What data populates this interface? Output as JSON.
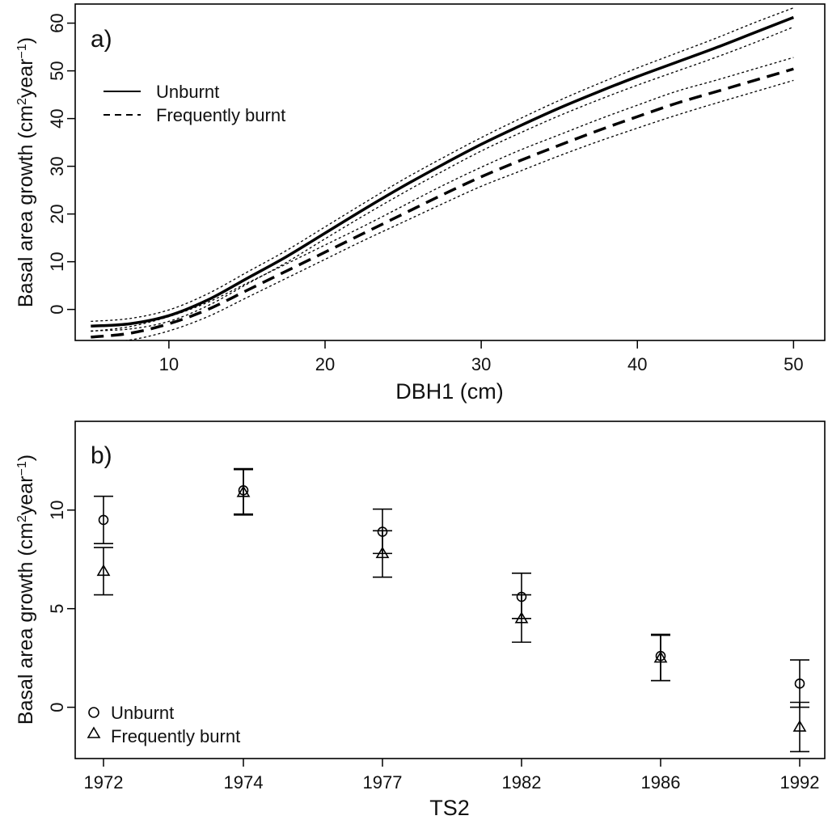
{
  "chart_data": [
    {
      "type": "line",
      "panel_label": "a)",
      "xlabel": "DBH1 (cm)",
      "ylabel": {
        "prefix": "Basal area growth (cm",
        "sup1": "2",
        "mid": "year",
        "sup2": "−1",
        "suffix": ")"
      },
      "xlim": [
        4,
        52
      ],
      "ylim": [
        -6.5,
        64
      ],
      "xticks": [
        10,
        20,
        30,
        40,
        50
      ],
      "yticks": [
        0,
        10,
        20,
        30,
        40,
        50,
        60
      ],
      "legend": {
        "position": "top-left",
        "entries": [
          {
            "label": "Unburnt",
            "style": "solid"
          },
          {
            "label": "Frequently burnt",
            "style": "dashed"
          }
        ]
      },
      "series": [
        {
          "name": "Unburnt",
          "style": "solid",
          "x": [
            5,
            7.5,
            10,
            12.5,
            15,
            17.5,
            20,
            22.5,
            25,
            27.5,
            30,
            32.5,
            35,
            37.5,
            40,
            42.5,
            45,
            47.5,
            50
          ],
          "y": [
            -3.5,
            -3.0,
            -1.3,
            2.0,
            6.5,
            11.0,
            16.0,
            21.0,
            25.8,
            30.3,
            34.6,
            38.5,
            42.2,
            45.6,
            48.8,
            51.8,
            54.8,
            58.0,
            61.2
          ],
          "lower": [
            -4.5,
            -4.1,
            -2.5,
            0.8,
            5.3,
            9.8,
            14.8,
            19.7,
            24.4,
            28.9,
            33.2,
            37.0,
            40.6,
            43.9,
            47.0,
            49.9,
            52.8,
            55.9,
            59.2
          ],
          "upper": [
            -2.5,
            -1.9,
            -0.1,
            3.3,
            7.8,
            12.3,
            17.3,
            22.3,
            27.2,
            31.7,
            36.0,
            40.0,
            43.8,
            47.3,
            50.6,
            53.7,
            56.8,
            60.1,
            63.2
          ]
        },
        {
          "name": "Frequently burnt",
          "style": "dashed",
          "x": [
            5,
            7.5,
            10,
            12.5,
            15,
            17.5,
            20,
            22.5,
            25,
            27.5,
            30,
            32.5,
            35,
            37.5,
            40,
            42.5,
            45,
            47.5,
            50
          ],
          "y": [
            -5.8,
            -5.0,
            -3.0,
            0.0,
            4.0,
            8.0,
            12.0,
            16.0,
            20.0,
            24.0,
            27.8,
            31.2,
            34.4,
            37.5,
            40.4,
            43.2,
            45.6,
            48.0,
            50.4
          ],
          "lower": [
            -7.0,
            -6.4,
            -4.5,
            -1.5,
            2.5,
            6.5,
            10.5,
            14.5,
            18.3,
            22.1,
            25.8,
            29.0,
            32.2,
            35.2,
            38.0,
            40.7,
            43.2,
            45.6,
            48.0
          ],
          "upper": [
            -4.6,
            -3.6,
            -1.5,
            1.5,
            5.5,
            9.5,
            13.5,
            17.5,
            21.7,
            25.9,
            29.8,
            33.4,
            36.6,
            39.8,
            42.8,
            45.7,
            48.0,
            50.4,
            52.8
          ]
        }
      ]
    },
    {
      "type": "scatter",
      "panel_label": "b)",
      "xlabel": "TS2",
      "ylabel": {
        "prefix": "Basal area growth (cm",
        "sup1": "2",
        "mid": "year",
        "sup2": "−1",
        "suffix": ")"
      },
      "categories": [
        "1972",
        "1974",
        "1977",
        "1982",
        "1986",
        "1992"
      ],
      "ylim": [
        -2.6,
        14.5
      ],
      "yticks": [
        0,
        5,
        10
      ],
      "legend": {
        "position": "bottom-left",
        "entries": [
          {
            "label": "Unburnt",
            "marker": "circle"
          },
          {
            "label": "Frequently burnt",
            "marker": "triangle"
          }
        ]
      },
      "series": [
        {
          "name": "Unburnt",
          "marker": "circle",
          "values": [
            9.5,
            11.0,
            8.9,
            5.6,
            2.6,
            1.2
          ],
          "lower": [
            8.3,
            9.8,
            7.8,
            4.5,
            1.35,
            0.0
          ],
          "upper": [
            10.7,
            12.1,
            10.05,
            6.8,
            3.7,
            2.4
          ]
        },
        {
          "name": "Frequently burnt",
          "marker": "triangle",
          "values": [
            6.9,
            10.9,
            7.8,
            4.5,
            2.5,
            -1.0
          ],
          "lower": [
            5.7,
            9.75,
            6.6,
            3.3,
            1.35,
            -2.25
          ],
          "upper": [
            8.1,
            12.05,
            8.95,
            5.7,
            3.65,
            0.25
          ]
        }
      ]
    }
  ]
}
